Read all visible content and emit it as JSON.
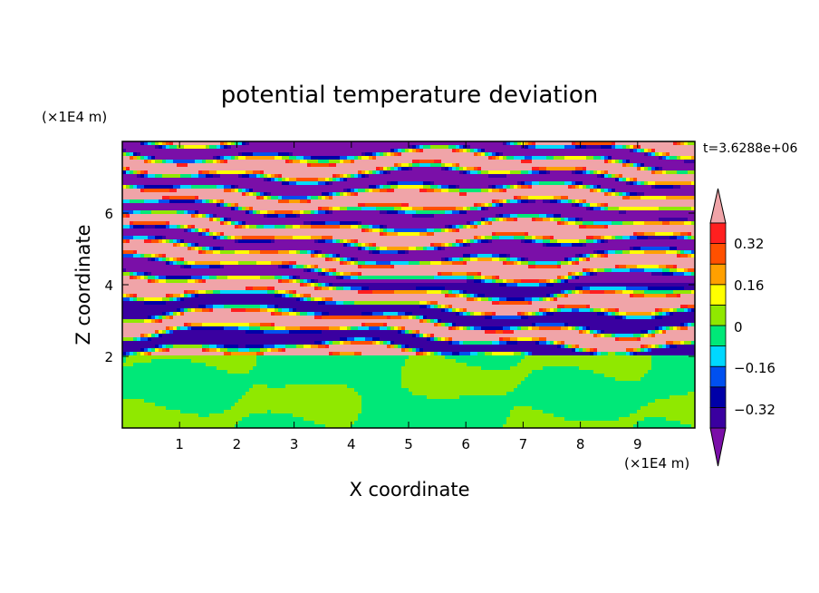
{
  "chart_data": {
    "type": "heatmap",
    "title": "potential temperature deviation",
    "xlabel": "X coordinate",
    "ylabel": "Z coordinate",
    "x_unit": "(×1E4 m)",
    "y_unit": "(×1E4 m)",
    "time_label": "t=3.6288e+06",
    "xlim": [
      0,
      10
    ],
    "ylim": [
      0,
      8
    ],
    "x_ticks": [
      "1",
      "2",
      "3",
      "4",
      "5",
      "6",
      "7",
      "8",
      "9"
    ],
    "y_ticks": [
      "2",
      "4",
      "6"
    ],
    "colorbar": {
      "tick_labels": [
        "0.32",
        "0.16",
        "0",
        "-0.16",
        "-0.32"
      ],
      "levels_bottom_to_top": [
        "#7a0fa8",
        "#3a00a0",
        "#0000a8",
        "#0050f0",
        "#00d8ff",
        "#00e878",
        "#90e800",
        "#ffff00",
        "#ffa000",
        "#ff5000",
        "#ff1f1f",
        "#f0a4a8"
      ],
      "extend": "both"
    },
    "layers": {
      "lower_layer": {
        "z_range": [
          0,
          2
        ],
        "description_colors": [
          "#00e878",
          "#90e800"
        ]
      },
      "stratified_layer": {
        "z_range": [
          2,
          8
        ]
      }
    }
  }
}
